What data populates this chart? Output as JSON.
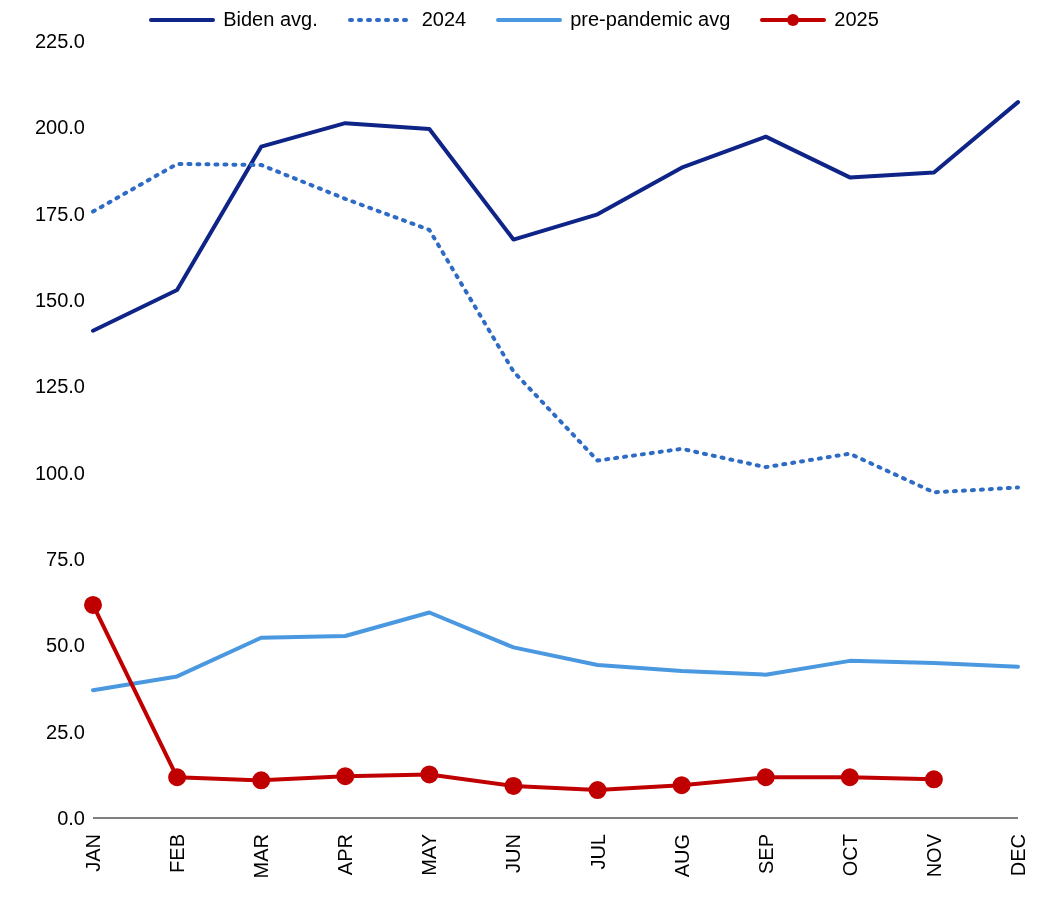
{
  "chart_data": {
    "type": "line",
    "categories": [
      "JAN",
      "FEB",
      "MAR",
      "APR",
      "MAY",
      "JUN",
      "JUL",
      "AUG",
      "SEP",
      "OCT",
      "NOV",
      "DEC"
    ],
    "series": [
      {
        "name": "Biden avg.",
        "color": "#0f2487",
        "line_style": "solid",
        "marker": "none",
        "values": [
          141.1,
          152.9,
          194.4,
          201.2,
          199.5,
          167.5,
          174.8,
          188.3,
          197.3,
          185.5,
          186.9,
          207.3
        ]
      },
      {
        "name": "2024",
        "color": "#2e6bc4",
        "line_style": "dotted",
        "marker": "none",
        "values": [
          175.6,
          189.4,
          189.1,
          179.3,
          170.3,
          129.3,
          103.5,
          106.9,
          101.6,
          105.5,
          94.3,
          95.7
        ]
      },
      {
        "name": "pre-pandemic avg",
        "color": "#4a98e0",
        "line_style": "solid",
        "marker": "none",
        "values": [
          37.0,
          41.0,
          52.2,
          52.7,
          59.5,
          49.4,
          44.3,
          42.6,
          41.5,
          45.5,
          44.9,
          43.8
        ]
      },
      {
        "name": "2025",
        "color": "#c00000",
        "line_style": "solid",
        "marker": "circle",
        "values": [
          61.7,
          11.8,
          10.9,
          12.1,
          12.6,
          9.3,
          8.1,
          9.5,
          11.8,
          11.8,
          11.2,
          null
        ]
      }
    ],
    "ylim": [
      0,
      225
    ],
    "yticks": [
      {
        "value": 0,
        "label": "0.0"
      },
      {
        "value": 25,
        "label": "25.0"
      },
      {
        "value": 50,
        "label": "50.0"
      },
      {
        "value": 75,
        "label": "75.0"
      },
      {
        "value": 100,
        "label": "100.0"
      },
      {
        "value": 125,
        "label": "125.0"
      },
      {
        "value": 150,
        "label": "150.0"
      },
      {
        "value": 175,
        "label": "175.0"
      },
      {
        "value": 200,
        "label": "200.0"
      },
      {
        "value": 225,
        "label": "225.0"
      }
    ],
    "grid": false,
    "legend": "top"
  }
}
